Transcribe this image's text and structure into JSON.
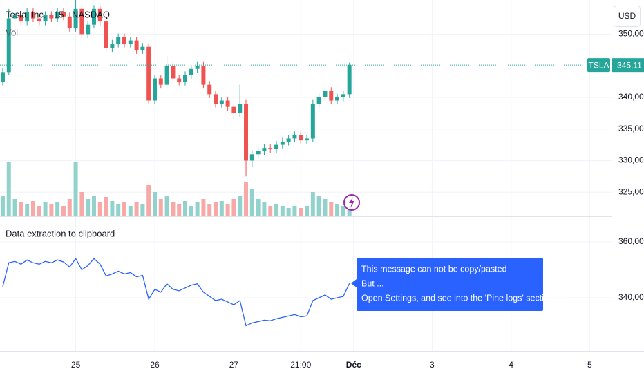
{
  "chart_data": [
    {
      "type": "candlestick",
      "title": "Tesla, Inc. · 15 · NASDAQ",
      "volume_label": "Vol",
      "currency": "USD",
      "symbol_label": "TSLA",
      "last_price": {
        "value": 345.11,
        "label": "345,11"
      },
      "up_color": "#26a69a",
      "down_color": "#ef5350",
      "volume_up_color": "#92d2cc",
      "volume_down_color": "#f7a9a7",
      "xlim": [
        -0.45,
        100.1
      ],
      "xticks": [
        {
          "value": 12,
          "label": "25"
        },
        {
          "value": 25,
          "label": "26"
        },
        {
          "value": 38,
          "label": "27"
        },
        {
          "value": 49,
          "label": "21:00"
        },
        {
          "value": 57.7,
          "label": "Déc"
        },
        {
          "value": 70.6,
          "label": "3"
        },
        {
          "value": 83.6,
          "label": "4"
        },
        {
          "value": 96.5,
          "label": "5"
        }
      ],
      "ylim": [
        321.2,
        355.4
      ],
      "yticks": [
        {
          "value": 325,
          "label": "325,00"
        },
        {
          "value": 330,
          "label": "330,00"
        },
        {
          "value": 335,
          "label": "335,00"
        },
        {
          "value": 340,
          "label": "340,00"
        },
        {
          "value": 350,
          "label": "350,00"
        }
      ],
      "open": [
        342.5,
        344,
        352.5,
        353,
        352,
        353.5,
        352.5,
        352,
        353,
        352.5,
        353.5,
        352.8,
        351,
        354,
        350,
        351.5,
        354,
        352,
        347.8,
        348.5,
        349.5,
        348.5,
        349,
        347.5,
        348,
        339.5,
        343,
        342,
        345,
        343,
        342.5,
        343.5,
        344.5,
        345,
        342,
        340.5,
        339,
        339.5,
        338.5,
        337.5,
        339,
        330,
        331,
        331.5,
        332,
        331.8,
        332.5,
        333,
        333.5,
        334,
        333.2,
        333.5,
        339,
        340,
        341,
        339.5,
        340,
        340.5
      ],
      "high": [
        344.6,
        354,
        353.8,
        353.6,
        354.1,
        354.1,
        353.1,
        353.6,
        353.6,
        354.1,
        354.1,
        353.4,
        356,
        354.6,
        352.1,
        354.6,
        354.6,
        352.6,
        349.1,
        350.1,
        350.1,
        349.6,
        349.6,
        348.6,
        348.6,
        343.6,
        343.6,
        346.5,
        345.6,
        343.6,
        344.1,
        345.1,
        345.6,
        345.6,
        342.6,
        341.1,
        340.1,
        340.1,
        339.1,
        342,
        339.6,
        331.6,
        332.1,
        332.6,
        332.6,
        333.1,
        333.6,
        334.1,
        334.6,
        334.6,
        334.1,
        339.6,
        340.6,
        342,
        341.6,
        340.6,
        341.1,
        345.5
      ],
      "low": [
        341.9,
        343.5,
        351.9,
        351.4,
        351.4,
        351.9,
        351.4,
        351.4,
        351.9,
        351.9,
        352.2,
        350.4,
        350.4,
        349.4,
        349.4,
        350.9,
        351.4,
        347.2,
        347.2,
        347.9,
        347.9,
        347.9,
        346.9,
        346.9,
        338.9,
        338.9,
        341.4,
        341.4,
        342.4,
        341.9,
        341.9,
        342.9,
        343.9,
        341.4,
        339.9,
        338.4,
        338.4,
        337.9,
        336.6,
        336.9,
        327.5,
        329,
        330.4,
        330.9,
        331.2,
        331.2,
        331.9,
        332.4,
        332.9,
        332.6,
        332.6,
        332.9,
        338.4,
        339.4,
        338.9,
        338.9,
        339.4,
        339.9
      ],
      "close": [
        344,
        352.5,
        353,
        352,
        353.5,
        352.5,
        352,
        353,
        352.5,
        353.5,
        352.8,
        351,
        354,
        350,
        351.5,
        354,
        352,
        347.8,
        348.5,
        349.5,
        348.5,
        349,
        347.5,
        348,
        339.5,
        343,
        342,
        345,
        343,
        342.5,
        343.5,
        344.5,
        345,
        342,
        340.5,
        339,
        339.5,
        338.5,
        337.5,
        339,
        330,
        331,
        331.5,
        332,
        331.8,
        332.5,
        333,
        333.5,
        334,
        333.2,
        333.5,
        339,
        340,
        341,
        339.5,
        340,
        340.5,
        345.11
      ],
      "volume": [
        30,
        78,
        25,
        20,
        18,
        22,
        15,
        20,
        18,
        20,
        15,
        25,
        78,
        35,
        25,
        30,
        20,
        28,
        22,
        18,
        20,
        15,
        20,
        18,
        45,
        35,
        25,
        30,
        20,
        18,
        22,
        15,
        20,
        25,
        18,
        20,
        22,
        18,
        25,
        30,
        50,
        40,
        25,
        20,
        15,
        18,
        15,
        12,
        15,
        12,
        15,
        35,
        30,
        25,
        20,
        18,
        15,
        20
      ]
    },
    {
      "type": "line",
      "title": "Data extraction to clipboard",
      "color": "#2962ff",
      "ylim": [
        321,
        369.1
      ],
      "yticks": [
        {
          "value": 340,
          "label": "340,00"
        },
        {
          "value": 360,
          "label": "360,00"
        }
      ],
      "values": [
        344,
        352.5,
        353,
        352,
        353.5,
        352.5,
        352,
        353,
        352.5,
        353.5,
        352.8,
        351,
        354,
        350,
        351.5,
        354,
        352,
        347.8,
        348.5,
        349.5,
        348.5,
        349,
        347.5,
        348,
        339.5,
        343,
        342,
        345,
        343,
        342.5,
        343.5,
        344.5,
        345,
        342,
        340.5,
        339,
        339.5,
        338.5,
        337.5,
        339,
        330,
        331,
        331.5,
        332,
        331.8,
        332.5,
        333,
        333.5,
        334,
        333.2,
        333.5,
        339,
        340,
        341,
        339.5,
        340,
        340.5,
        345.11
      ],
      "message": [
        "This message can not be copy/pasted",
        "But ...",
        "Open Settings, and see into the 'Pine logs' section =>"
      ]
    }
  ]
}
